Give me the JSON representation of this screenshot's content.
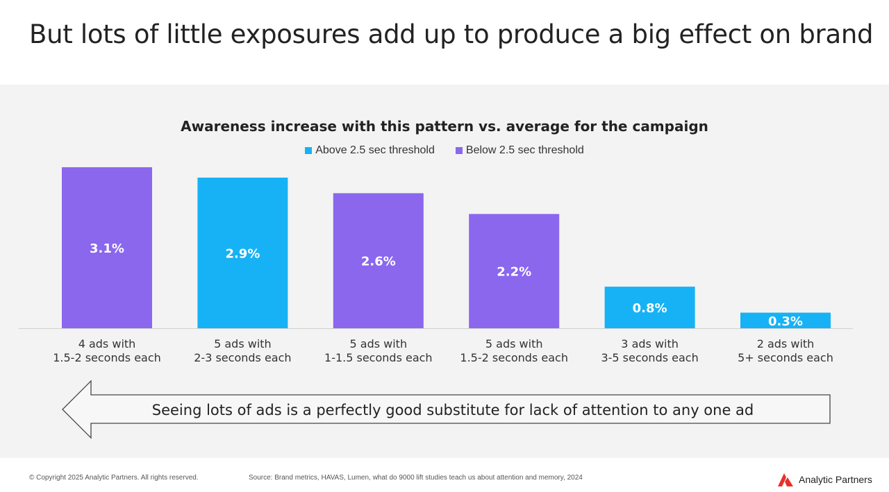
{
  "slide": {
    "title": "But lots of little exposures add up to produce a big effect on brand"
  },
  "chart_data": {
    "type": "bar",
    "title": "Awareness increase with this pattern vs. average for the campaign",
    "legend_position": "top",
    "series": [
      {
        "name": "Above 2.5 sec threshold",
        "color": "#16b2f5"
      },
      {
        "name": "Below 2.5 sec threshold",
        "color": "#8a67ed"
      }
    ],
    "categories": [
      [
        "4 ads with",
        "1.5-2 seconds each"
      ],
      [
        "5 ads with",
        "2-3 seconds each"
      ],
      [
        "5 ads with",
        "1-1.5 seconds each"
      ],
      [
        "5 ads with",
        "1.5-2 seconds each"
      ],
      [
        "3 ads with",
        "3-5 seconds each"
      ],
      [
        "2 ads with",
        "5+ seconds each"
      ]
    ],
    "values": [
      3.1,
      2.9,
      2.6,
      2.2,
      0.8,
      0.3
    ],
    "value_labels": [
      "3.1%",
      "2.9%",
      "2.6%",
      "2.2%",
      "0.8%",
      "0.3%"
    ],
    "bar_series": [
      1,
      0,
      1,
      1,
      0,
      0
    ],
    "ylim": [
      0,
      3.1
    ],
    "grid": false
  },
  "arrow": {
    "text": "Seeing lots of ads is a perfectly good substitute for lack of attention to any one ad"
  },
  "footer": {
    "copyright": "© Copyright 2025 Analytic Partners. All rights reserved.",
    "source": "Source: Brand metrics, HAVAS, Lumen, what do 9000 lift studies teach us about attention and memory, 2024",
    "logo_text": "Analytic Partners",
    "logo_color": "#e8302a"
  }
}
